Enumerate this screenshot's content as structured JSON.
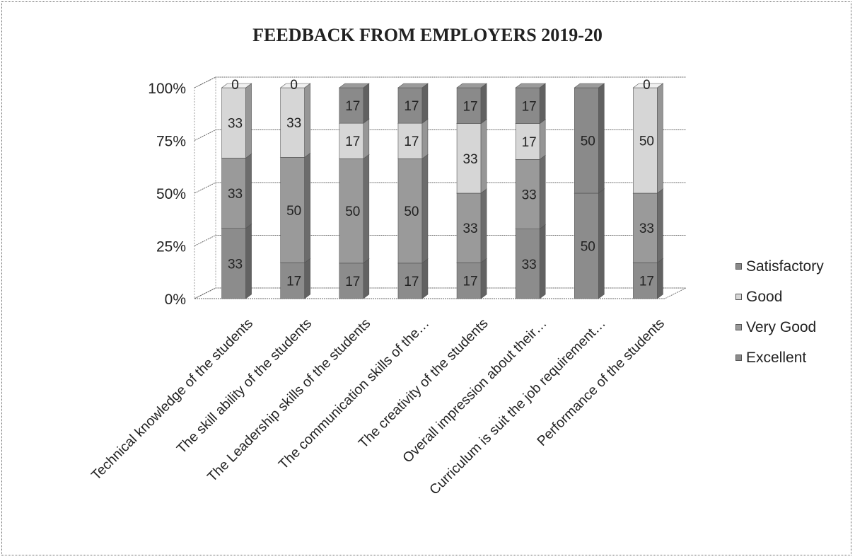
{
  "chart_data": {
    "type": "bar",
    "stacked": true,
    "percent_stacked": true,
    "three_d": true,
    "title": "FEEDBACK FROM EMPLOYERS 2019-20",
    "categories": [
      "Technical knowledge of the students",
      "The skill ability of the students",
      "The Leadership skills of the students",
      "The communication skills of the…",
      "The creativity of the students",
      "Overall impression about their…",
      "Curriculum is suit the job requirement…",
      "Performance of the students"
    ],
    "series": [
      {
        "name": "Excellent",
        "values": [
          33,
          17,
          17,
          17,
          17,
          33,
          50,
          17
        ],
        "color": "#8c8c8c"
      },
      {
        "name": "Very Good",
        "values": [
          33,
          50,
          50,
          50,
          33,
          33,
          0,
          33
        ],
        "color": "#9a9a9a"
      },
      {
        "name": "Good",
        "values": [
          33,
          33,
          17,
          17,
          33,
          17,
          0,
          50
        ],
        "color": "#d6d6d6"
      },
      {
        "name": "Satisfactory",
        "values": [
          0,
          0,
          17,
          17,
          17,
          17,
          50,
          0
        ],
        "color": "#8a8a8a"
      }
    ],
    "yticks": [
      "0%",
      "25%",
      "50%",
      "75%",
      "100%"
    ],
    "ylim": [
      0,
      100
    ],
    "legend_position": "right",
    "grid": true
  }
}
